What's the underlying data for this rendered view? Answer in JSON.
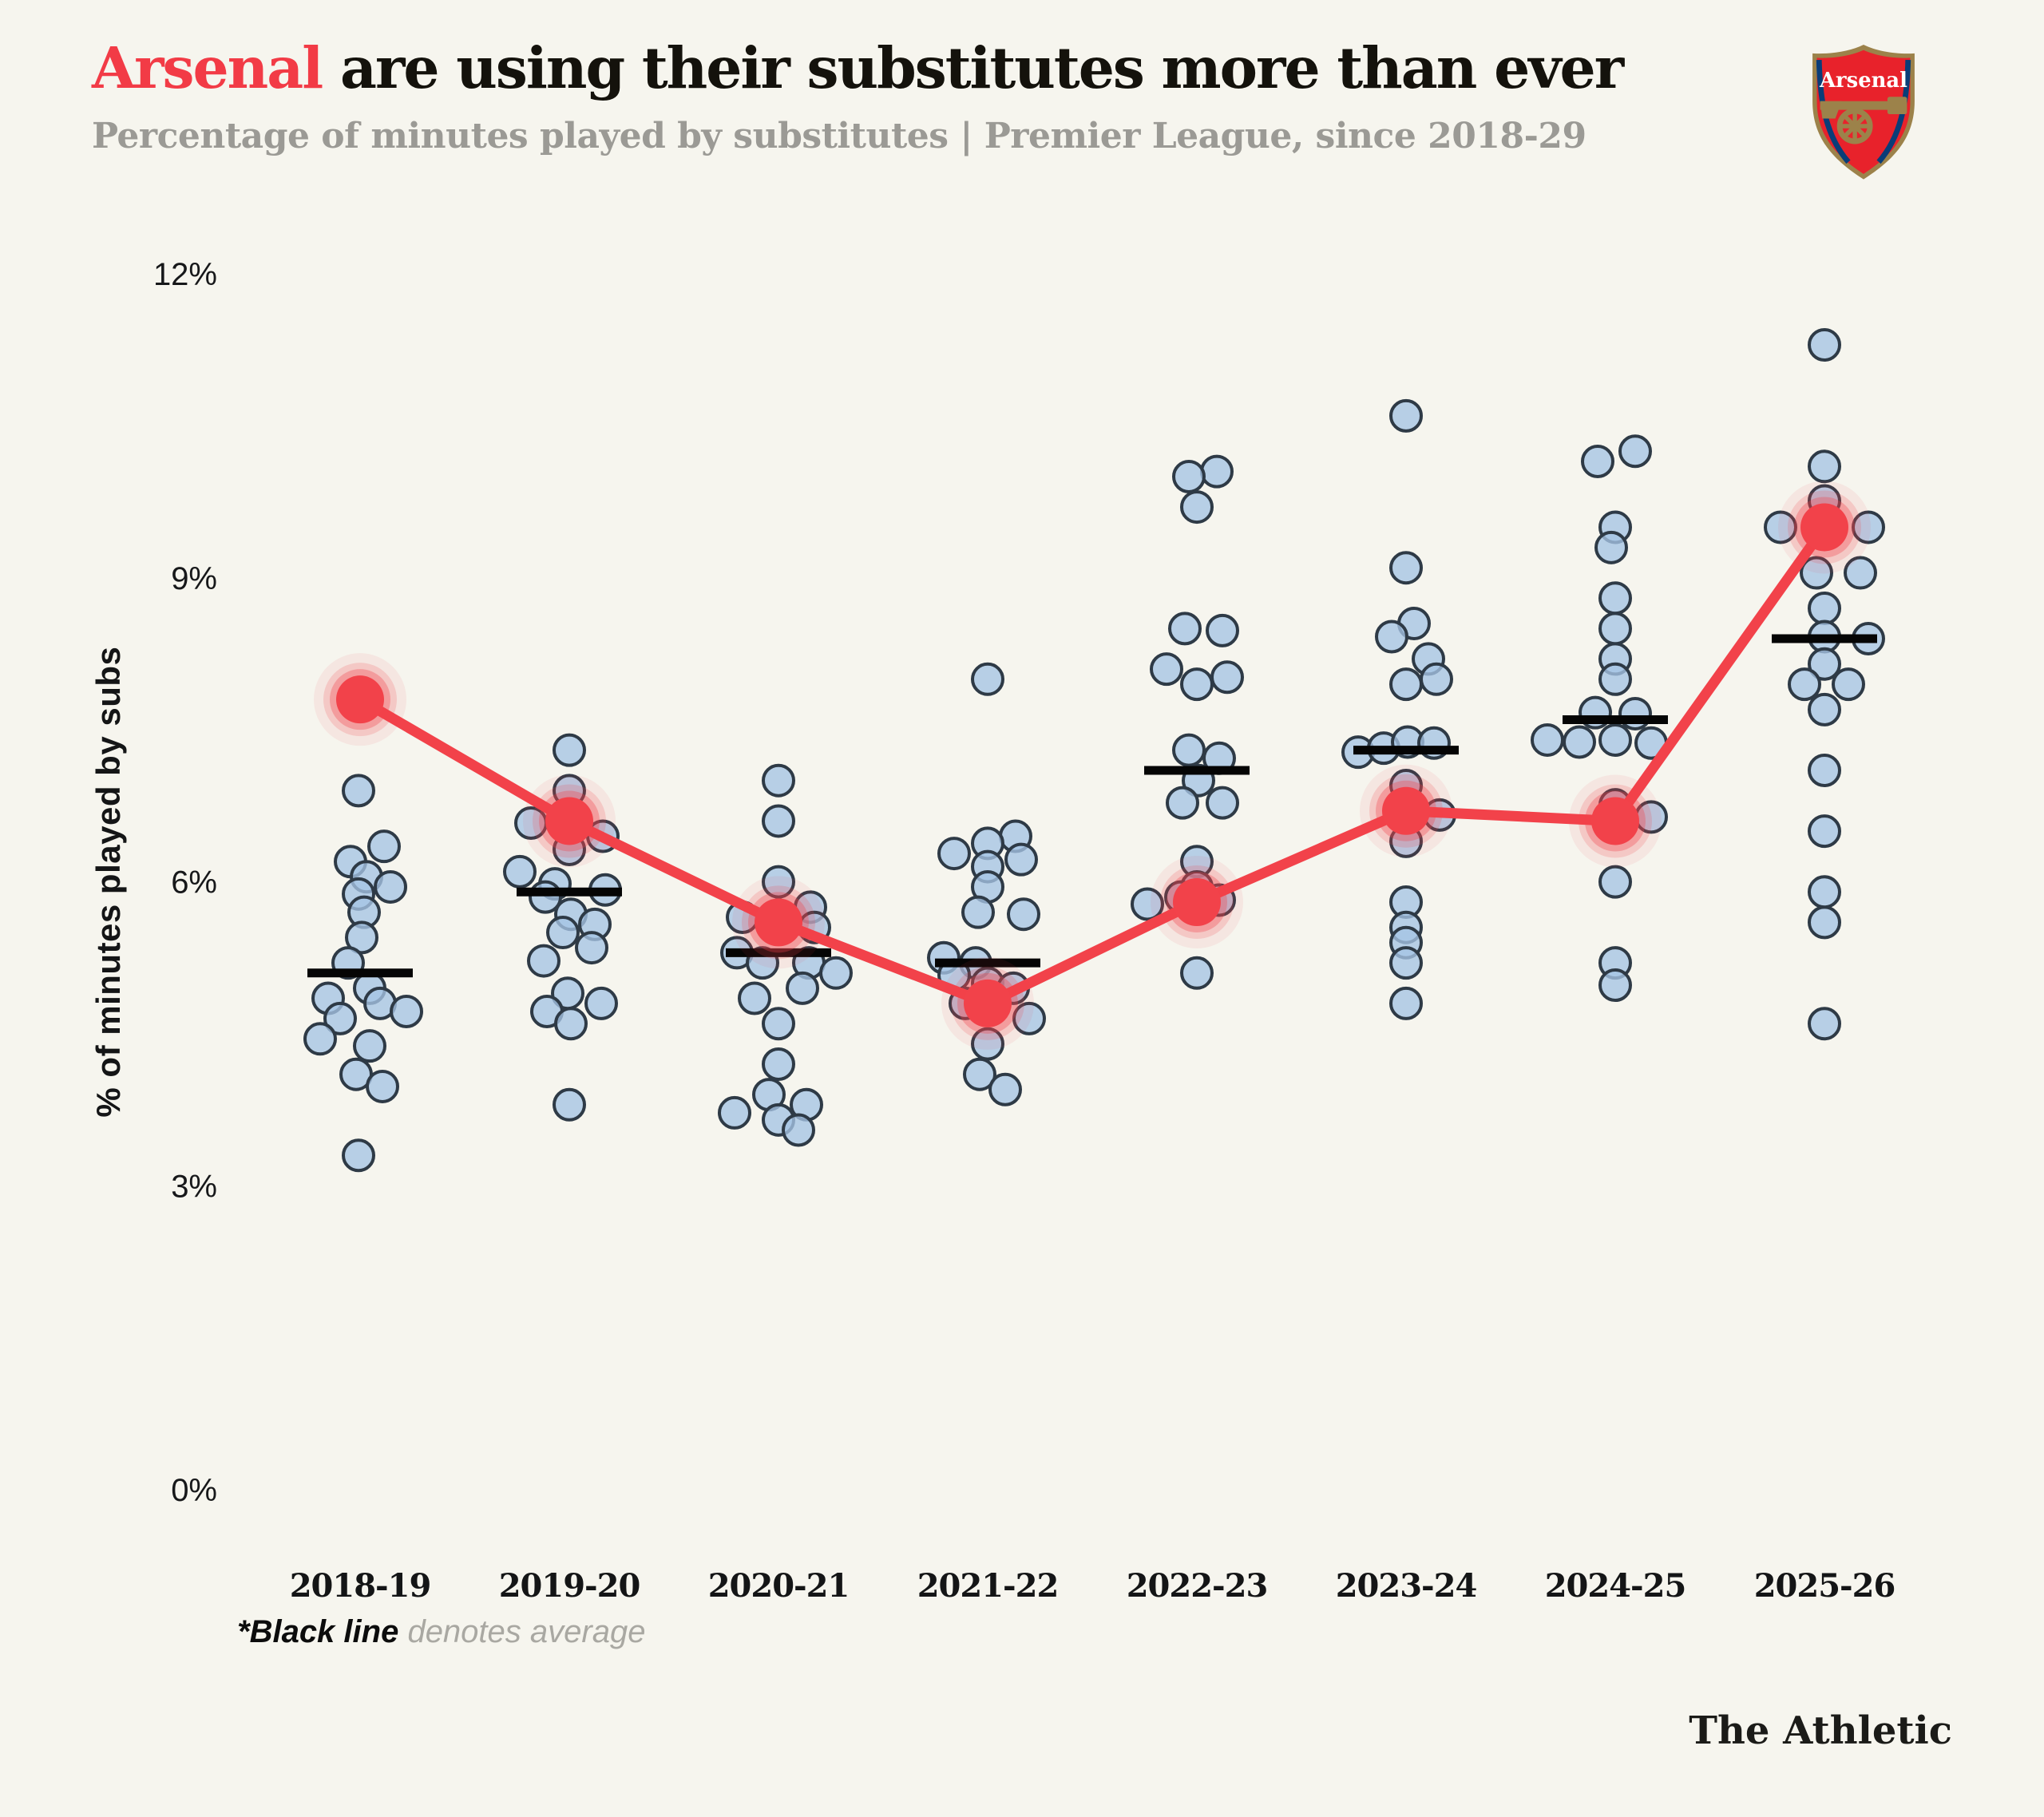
{
  "header": {
    "title_team": "Arsenal",
    "title_rest": " are using their substitutes more than ever",
    "subtitle": "Percentage of minutes played by substitutes | Premier League, since 2018-29",
    "logo_label": "Arsenal",
    "logo_colors": {
      "crest_red": "#e8222b",
      "crest_gold": "#9c824a",
      "crest_navy": "#0a3d78",
      "crest_text": "#ffffff"
    }
  },
  "footnote": {
    "bold": "*Black line",
    "rest": " denotes average"
  },
  "footer": {
    "brand": "The Athletic"
  },
  "colors": {
    "background": "#f6f5ee",
    "accent_red": "#f2424a",
    "dot_fill": "#a5c4e4",
    "dot_stroke": "#2e3a46",
    "average_line": "#050505",
    "title_color": "#14120c",
    "subtitle_color": "#9b9a95"
  },
  "chart_data": {
    "type": "scatter",
    "title": "Arsenal are using their substitutes more than ever",
    "subtitle": "Percentage of minutes played by substitutes | Premier League, since 2018-29",
    "xlabel": "",
    "ylabel": "% of minutes played by subs",
    "ylim": [
      0,
      12
    ],
    "yticks": [
      0,
      3,
      6,
      9,
      12
    ],
    "ytick_suffix": "%",
    "grid": false,
    "legend": false,
    "note": "*Black line denotes average",
    "categories": [
      "2018-19",
      "2019-20",
      "2020-21",
      "2021-22",
      "2022-23",
      "2023-24",
      "2024-25",
      "2025-26"
    ],
    "series": [
      {
        "name": "Arsenal",
        "type": "line",
        "color": "#f2424a",
        "values": [
          7.8,
          6.6,
          5.6,
          4.8,
          5.8,
          6.7,
          6.6,
          9.5
        ]
      },
      {
        "name": "League average",
        "type": "tick",
        "color": "#050505",
        "values": [
          5.1,
          5.9,
          5.3,
          5.2,
          7.1,
          7.3,
          7.6,
          8.4
        ]
      },
      {
        "name": "Other Premier League teams",
        "type": "beeswarm",
        "color": "#a5c4e4",
        "points": [
          [
            [
              -2,
              6.9
            ],
            [
              30,
              6.35
            ],
            [
              -12,
              6.2
            ],
            [
              8,
              6.05
            ],
            [
              38,
              5.95
            ],
            [
              -2,
              5.88
            ],
            [
              5,
              5.7
            ],
            [
              2,
              5.45
            ],
            [
              -15,
              5.2
            ],
            [
              12,
              4.95
            ],
            [
              -40,
              4.85
            ],
            [
              25,
              4.8
            ],
            [
              58,
              4.72
            ],
            [
              -25,
              4.65
            ],
            [
              -50,
              4.45
            ],
            [
              12,
              4.38
            ],
            [
              -5,
              4.1
            ],
            [
              28,
              3.98
            ],
            [
              -2,
              3.3
            ]
          ],
          [
            [
              0,
              7.3
            ],
            [
              0,
              6.9
            ],
            [
              -48,
              6.58
            ],
            [
              42,
              6.45
            ],
            [
              0,
              6.32
            ],
            [
              -62,
              6.1
            ],
            [
              -18,
              5.98
            ],
            [
              45,
              5.92
            ],
            [
              -30,
              5.85
            ],
            [
              2,
              5.68
            ],
            [
              32,
              5.58
            ],
            [
              -8,
              5.5
            ],
            [
              28,
              5.35
            ],
            [
              -32,
              5.22
            ],
            [
              -2,
              4.9
            ],
            [
              40,
              4.8
            ],
            [
              -28,
              4.72
            ],
            [
              2,
              4.6
            ],
            [
              0,
              3.8
            ]
          ],
          [
            [
              0,
              7.0
            ],
            [
              0,
              6.6
            ],
            [
              0,
              6.0
            ],
            [
              40,
              5.75
            ],
            [
              -45,
              5.65
            ],
            [
              45,
              5.55
            ],
            [
              -52,
              5.3
            ],
            [
              -20,
              5.2
            ],
            [
              38,
              5.2
            ],
            [
              72,
              5.1
            ],
            [
              30,
              4.95
            ],
            [
              -30,
              4.85
            ],
            [
              0,
              4.6
            ],
            [
              0,
              4.2
            ],
            [
              -12,
              3.9
            ],
            [
              35,
              3.8
            ],
            [
              -55,
              3.72
            ],
            [
              0,
              3.65
            ],
            [
              25,
              3.55
            ]
          ],
          [
            [
              0,
              8.0
            ],
            [
              35,
              6.45
            ],
            [
              0,
              6.38
            ],
            [
              -42,
              6.28
            ],
            [
              42,
              6.22
            ],
            [
              0,
              6.15
            ],
            [
              0,
              5.95
            ],
            [
              -12,
              5.7
            ],
            [
              45,
              5.68
            ],
            [
              -55,
              5.25
            ],
            [
              -15,
              5.2
            ],
            [
              -42,
              5.08
            ],
            [
              0,
              5.0
            ],
            [
              32,
              4.95
            ],
            [
              -28,
              4.8
            ],
            [
              52,
              4.65
            ],
            [
              0,
              4.4
            ],
            [
              -10,
              4.1
            ],
            [
              22,
              3.95
            ]
          ],
          [
            [
              25,
              10.05
            ],
            [
              -10,
              10.0
            ],
            [
              0,
              9.7
            ],
            [
              -15,
              8.5
            ],
            [
              32,
              8.48
            ],
            [
              -38,
              8.1
            ],
            [
              38,
              8.02
            ],
            [
              0,
              7.95
            ],
            [
              -10,
              7.3
            ],
            [
              28,
              7.22
            ],
            [
              2,
              7.0
            ],
            [
              -18,
              6.78
            ],
            [
              32,
              6.78
            ],
            [
              0,
              6.2
            ],
            [
              0,
              5.95
            ],
            [
              -20,
              5.85
            ],
            [
              28,
              5.82
            ],
            [
              -62,
              5.78
            ],
            [
              0,
              5.1
            ]
          ],
          [
            [
              0,
              10.6
            ],
            [
              0,
              9.1
            ],
            [
              10,
              8.55
            ],
            [
              -18,
              8.42
            ],
            [
              28,
              8.2
            ],
            [
              38,
              8.0
            ],
            [
              0,
              7.95
            ],
            [
              -60,
              7.28
            ],
            [
              -28,
              7.32
            ],
            [
              2,
              7.38
            ],
            [
              35,
              7.37
            ],
            [
              0,
              6.95
            ],
            [
              42,
              6.66
            ],
            [
              0,
              6.4
            ],
            [
              0,
              5.8
            ],
            [
              0,
              5.55
            ],
            [
              0,
              5.4
            ],
            [
              0,
              5.2
            ],
            [
              0,
              4.8
            ]
          ],
          [
            [
              25,
              10.25
            ],
            [
              -22,
              10.15
            ],
            [
              0,
              9.5
            ],
            [
              -5,
              9.3
            ],
            [
              0,
              8.8
            ],
            [
              0,
              8.5
            ],
            [
              0,
              8.2
            ],
            [
              0,
              8.0
            ],
            [
              -25,
              7.67
            ],
            [
              25,
              7.66
            ],
            [
              -85,
              7.4
            ],
            [
              -45,
              7.38
            ],
            [
              0,
              7.4
            ],
            [
              45,
              7.37
            ],
            [
              0,
              6.76
            ],
            [
              45,
              6.64
            ],
            [
              0,
              6.0
            ],
            [
              0,
              5.2
            ],
            [
              0,
              4.98
            ]
          ],
          [
            [
              0,
              11.3
            ],
            [
              0,
              10.1
            ],
            [
              0,
              9.76
            ],
            [
              -55,
              9.5
            ],
            [
              55,
              9.5
            ],
            [
              -10,
              9.05
            ],
            [
              45,
              9.05
            ],
            [
              0,
              8.7
            ],
            [
              0,
              8.42
            ],
            [
              55,
              8.4
            ],
            [
              0,
              8.15
            ],
            [
              -25,
              7.95
            ],
            [
              30,
              7.95
            ],
            [
              0,
              7.7
            ],
            [
              0,
              7.1
            ],
            [
              0,
              6.5
            ],
            [
              0,
              5.9
            ],
            [
              0,
              5.6
            ],
            [
              0,
              4.6
            ]
          ]
        ]
      }
    ]
  }
}
